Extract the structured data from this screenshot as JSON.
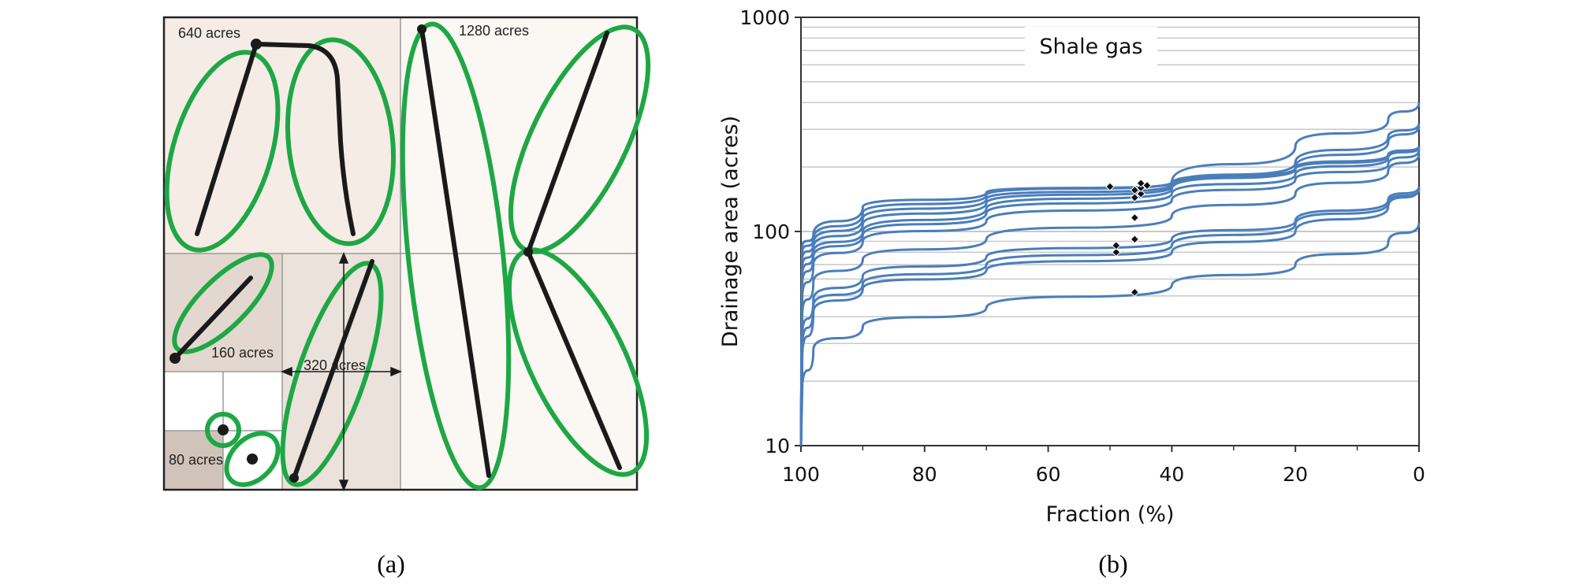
{
  "panel_a": {
    "caption": "(a)",
    "labels": {
      "a640": "640 acres",
      "a1280": "1280 acres",
      "a160": "160 acres",
      "a320": "320 acres",
      "a80": "80 acres"
    },
    "colors": {
      "ellipse": "#1ea745",
      "well": "#1a1a1a",
      "bg_light": "#f5ece6",
      "bg_mid": "#e3d8cf",
      "bg_dark": "#d0c4ba"
    }
  },
  "panel_b": {
    "caption": "(b)"
  },
  "chart_data": {
    "type": "line",
    "annotation": "Shale gas",
    "xlabel": "Fraction (%)",
    "ylabel": "Drainage area (acres)",
    "xlim": [
      100,
      0
    ],
    "ylim": [
      10,
      1000
    ],
    "yscale": "log",
    "x_ticks": [
      "100",
      "80",
      "60",
      "40",
      "20",
      "0"
    ],
    "y_ticks": [
      "10",
      "100",
      "1000"
    ],
    "grid": "horizontal",
    "color": "#4a7ebb",
    "series": [
      {
        "values": [
          [
            99.8,
            18
          ],
          [
            98,
            28
          ],
          [
            90,
            36
          ],
          [
            70,
            44
          ],
          [
            40,
            56
          ],
          [
            20,
            70
          ],
          [
            5,
            88
          ],
          [
            0,
            110
          ]
        ],
        "marker": [
          46,
          52
        ]
      },
      {
        "values": [
          [
            99.8,
            25
          ],
          [
            98,
            42
          ],
          [
            90,
            54
          ],
          [
            70,
            66
          ],
          [
            40,
            80
          ],
          [
            20,
            100
          ],
          [
            5,
            130
          ],
          [
            0,
            160
          ]
        ],
        "marker": [
          49,
          80
        ]
      },
      {
        "values": [
          [
            99.8,
            28
          ],
          [
            98,
            45
          ],
          [
            90,
            57
          ],
          [
            70,
            70
          ],
          [
            40,
            86
          ],
          [
            20,
            108
          ],
          [
            5,
            136
          ],
          [
            0,
            158
          ]
        ],
        "marker": [
          49,
          86
        ]
      },
      {
        "values": [
          [
            99.8,
            32
          ],
          [
            98,
            48
          ],
          [
            90,
            62
          ],
          [
            70,
            76
          ],
          [
            40,
            92
          ],
          [
            20,
            112
          ],
          [
            5,
            140
          ],
          [
            0,
            162
          ]
        ],
        "marker": [
          46,
          92
        ]
      },
      {
        "values": [
          [
            99.8,
            40
          ],
          [
            98,
            58
          ],
          [
            90,
            74
          ],
          [
            70,
            92
          ],
          [
            40,
            118
          ],
          [
            20,
            150
          ],
          [
            5,
            190
          ],
          [
            0,
            230
          ]
        ],
        "marker": [
          46,
          116
        ]
      },
      {
        "values": [
          [
            99.8,
            48
          ],
          [
            98,
            70
          ],
          [
            90,
            90
          ],
          [
            70,
            112
          ],
          [
            40,
            140
          ],
          [
            20,
            175
          ],
          [
            5,
            205
          ],
          [
            0,
            240
          ]
        ],
        "marker": [
          46,
          144
        ]
      },
      {
        "values": [
          [
            99.8,
            56
          ],
          [
            98,
            76
          ],
          [
            90,
            96
          ],
          [
            70,
            122
          ],
          [
            40,
            150
          ],
          [
            20,
            185
          ],
          [
            5,
            220
          ],
          [
            0,
            250
          ]
        ],
        "marker": [
          45,
          150
        ]
      },
      {
        "values": [
          [
            99.8,
            62
          ],
          [
            98,
            80
          ],
          [
            90,
            100
          ],
          [
            70,
            128
          ],
          [
            40,
            158
          ],
          [
            20,
            200
          ],
          [
            5,
            260
          ],
          [
            0,
            310
          ]
        ],
        "marker": [
          46,
          156
        ]
      },
      {
        "values": [
          [
            99.8,
            68
          ],
          [
            98,
            84
          ],
          [
            90,
            108
          ],
          [
            70,
            136
          ],
          [
            40,
            162
          ],
          [
            20,
            210
          ],
          [
            5,
            275
          ],
          [
            0,
            320
          ]
        ],
        "marker": [
          45,
          160
        ]
      },
      {
        "values": [
          [
            99.8,
            74
          ],
          [
            98,
            88
          ],
          [
            90,
            115
          ],
          [
            70,
            142
          ],
          [
            40,
            165
          ],
          [
            20,
            195
          ],
          [
            5,
            225
          ],
          [
            0,
            245
          ]
        ],
        "marker": [
          44,
          164
        ]
      },
      {
        "values": [
          [
            99.8,
            80
          ],
          [
            98,
            92
          ],
          [
            90,
            122
          ],
          [
            70,
            148
          ],
          [
            40,
            170
          ],
          [
            20,
            250
          ],
          [
            5,
            330
          ],
          [
            0,
            400
          ]
        ],
        "marker": [
          50,
          162
        ]
      },
      {
        "values": [
          [
            99.8,
            85
          ],
          [
            98,
            96
          ],
          [
            90,
            130
          ],
          [
            70,
            152
          ],
          [
            40,
            168
          ],
          [
            20,
            198
          ],
          [
            5,
            228
          ],
          [
            0,
            250
          ]
        ],
        "marker": [
          45,
          168
        ]
      }
    ]
  }
}
